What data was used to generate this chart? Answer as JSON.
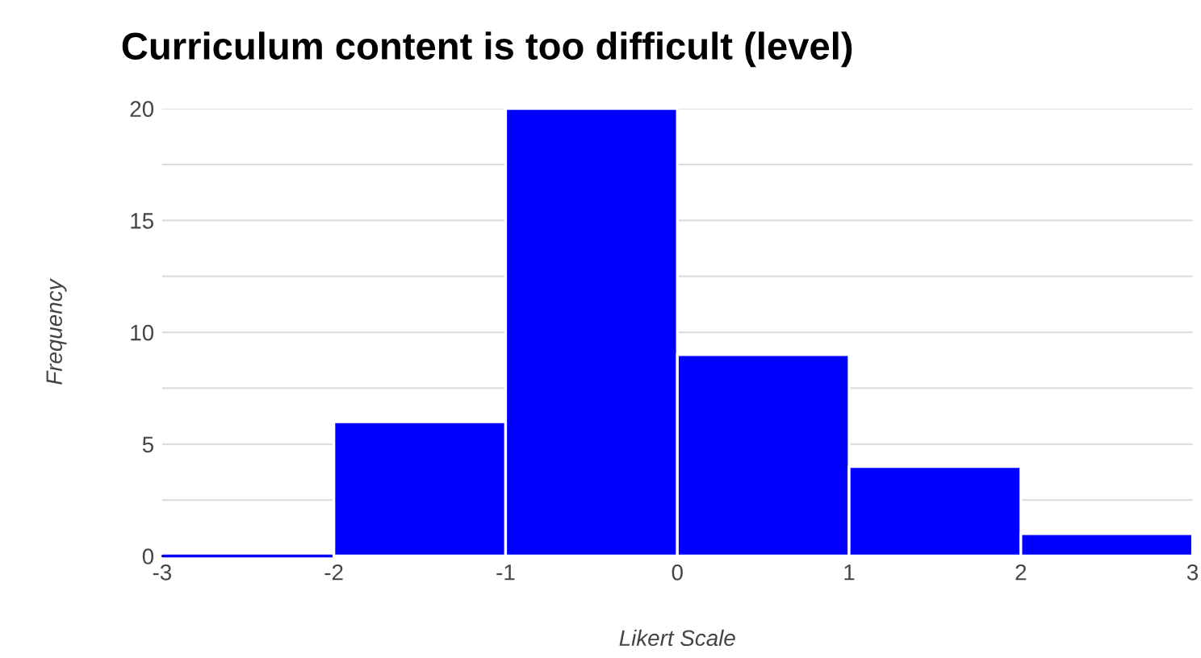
{
  "chart_data": {
    "type": "histogram",
    "title": "Curriculum content is too difficult (level)",
    "xlabel": "Likert Scale",
    "ylabel": "Frequency",
    "bins": [
      -3,
      -2,
      -1,
      0,
      1,
      2,
      3
    ],
    "values": [
      0,
      6,
      20,
      9,
      4,
      1
    ],
    "color": "#0000ff",
    "xlim": [
      -3,
      3
    ],
    "xticks": [
      -3,
      -2,
      -1,
      0,
      1,
      2,
      3
    ],
    "ylim": [
      0,
      20
    ],
    "yticks": [
      0,
      {
        "value": 2.5,
        "label": null
      },
      5,
      {
        "value": 7.5,
        "label": null
      },
      10,
      {
        "value": 12.5,
        "label": null
      },
      15,
      {
        "value": 17.5,
        "label": null
      },
      20
    ],
    "grid": "y"
  }
}
